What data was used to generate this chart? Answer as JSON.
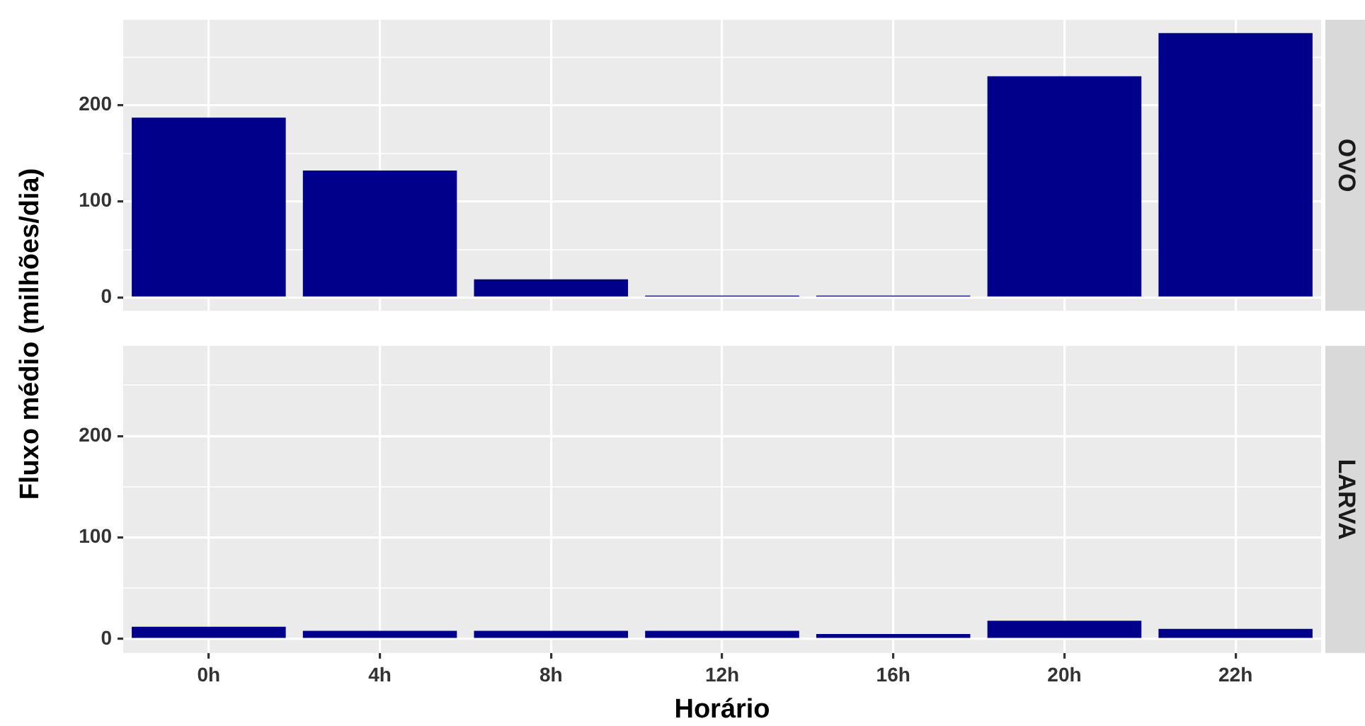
{
  "chart_data": [
    {
      "type": "bar",
      "title": "OVO",
      "ylabel": "Fluxo médio (milhões/dia)",
      "categories": [
        null,
        null,
        null,
        null,
        null,
        null,
        null
      ],
      "values": [
        187,
        132,
        19,
        2,
        2,
        230,
        275
      ],
      "color": "#00008b",
      "ylim": [
        -13.75,
        288.75
      ],
      "yticks": [
        0,
        {
          "value": 50,
          "label": null
        },
        100,
        {
          "value": 150,
          "label": null
        },
        200,
        {
          "value": 250,
          "label": null
        }
      ],
      "grid": true,
      "legend": false,
      "tick_labels": "y"
    },
    {
      "type": "bar",
      "title": "LARVA",
      "xlabel": "Horário",
      "categories": [
        "0h",
        "4h",
        "8h",
        "12h",
        "16h",
        "20h",
        "22h"
      ],
      "values": [
        12,
        8,
        8,
        8,
        5,
        18,
        10
      ],
      "color": "#00008b",
      "ylim": [
        -13.75,
        288.75
      ],
      "yticks": [
        0,
        {
          "value": 50,
          "label": null
        },
        100,
        {
          "value": 150,
          "label": null
        },
        200,
        {
          "value": 250,
          "label": null
        }
      ],
      "grid": true,
      "legend": false
    }
  ]
}
